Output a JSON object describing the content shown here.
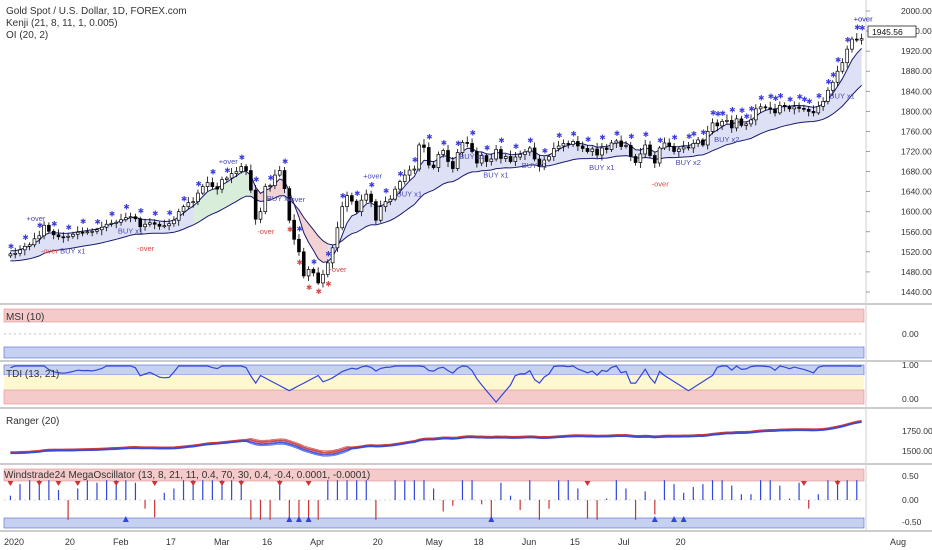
{
  "chart_data": {
    "type": "candlestick",
    "title": "Gold Spot / U.S. Dollar, 1D, FOREX.com",
    "indicators": {
      "main": [
        "Kenji (21, 8, 11, 1, 0.005)",
        "OI (20, 2)"
      ],
      "msi": "MSI (10)",
      "tdi": "TDI (13, 21)",
      "ranger": "Ranger (20)",
      "mega": "Windstrade24 MegaOscillator (13, 8, 21, 11, 0.4, 70, 30, 0.4, -0.4, 0.0001, -0.0001)"
    },
    "x_ticks": [
      "2020",
      "20",
      "Feb",
      "17",
      "Mar",
      "16",
      "Apr",
      "20",
      "May",
      "18",
      "Jun",
      "15",
      "Jul",
      "20",
      "Aug"
    ],
    "y_ticks_price": [
      "2000.00",
      "1960.00",
      "1920.00",
      "1880.00",
      "1840.00",
      "1800.00",
      "1760.00",
      "1720.00",
      "1680.00",
      "1640.00",
      "1600.00",
      "1560.00",
      "1520.00",
      "1480.00",
      "1440.00"
    ],
    "ylim_price": [
      1420,
      2010
    ],
    "last_price": "1945.56",
    "y_ticks_msi": [
      "0.00"
    ],
    "y_ticks_tdi": [
      "1.00",
      "0.00"
    ],
    "y_ticks_ranger": [
      "1750.00",
      "1500.00"
    ],
    "y_ticks_mega": [
      "0.50",
      "0.00",
      "-0.50"
    ],
    "annotations": [
      {
        "text": "BUY x1",
        "date_index": 12
      },
      {
        "text": "BUY x1",
        "date_index": 24
      },
      {
        "text": "BUY x2",
        "date_index": 55
      },
      {
        "text": "BUY x1",
        "date_index": 82
      },
      {
        "text": "BUY x1",
        "date_index": 95
      },
      {
        "text": "BUY x1",
        "date_index": 100
      },
      {
        "text": "BUY x1",
        "date_index": 108
      },
      {
        "text": "BUY x1",
        "date_index": 122
      },
      {
        "text": "BUY x2",
        "date_index": 140
      },
      {
        "text": "BUY x2",
        "date_index": 148
      },
      {
        "text": "BUY x1",
        "date_index": 172
      }
    ],
    "over_labels": [
      {
        "text": "+over",
        "date_index": 5
      },
      {
        "text": "-over",
        "date_index": 8
      },
      {
        "text": "-over",
        "date_index": 28
      },
      {
        "text": "+over",
        "date_index": 45
      },
      {
        "text": "-over",
        "date_index": 53
      },
      {
        "text": "+over",
        "date_index": 59
      },
      {
        "text": "-over",
        "date_index": 68
      },
      {
        "text": "+over",
        "date_index": 75
      },
      {
        "text": "-over",
        "date_index": 135
      },
      {
        "text": "+over",
        "date_index": 177
      },
      {
        "text": "+over",
        "date_index": 182
      }
    ],
    "colors": {
      "up": "#ffffff",
      "down": "#000000",
      "band_upper": "#1a1a6e",
      "band_lower": "#1a1a6e",
      "band_fill": "#d8dcf5",
      "bear_fill": "#f5d0d0",
      "bull_fill": "#d7efd7",
      "marker": "#3b3bdf",
      "buy_text": "#4a4ab8",
      "over_text_pos": "#4a4ab8",
      "over_text_neg": "#d84848",
      "pane_red": "#f4caca",
      "pane_blue": "#c6d1f2",
      "pane_yellow": "#fdf8cf",
      "line_blue": "#3246d8",
      "line_red": "#cc3333"
    },
    "series": [
      {
        "name": "close",
        "values": [
          1516,
          1517,
          1524,
          1531,
          1534,
          1546,
          1552,
          1573,
          1561,
          1554,
          1550,
          1549,
          1551,
          1555,
          1559,
          1558,
          1560,
          1561,
          1564,
          1569,
          1575,
          1577,
          1579,
          1584,
          1588,
          1590,
          1586,
          1570,
          1575,
          1578,
          1575,
          1571,
          1572,
          1576,
          1583,
          1600,
          1610,
          1618,
          1620,
          1637,
          1650,
          1658,
          1650,
          1645,
          1664,
          1667,
          1676,
          1680,
          1690,
          1682,
          1643,
          1585,
          1600,
          1650,
          1652,
          1673,
          1682,
          1646,
          1583,
          1545,
          1520,
          1472,
          1485,
          1478,
          1458,
          1475,
          1498,
          1528,
          1568,
          1610,
          1632,
          1621,
          1600,
          1623,
          1635,
          1620,
          1583,
          1610,
          1620,
          1625,
          1645,
          1660,
          1673,
          1683,
          1685,
          1733,
          1728,
          1693,
          1688,
          1714,
          1722,
          1700,
          1686,
          1718,
          1738,
          1736,
          1720,
          1697,
          1712,
          1700,
          1705,
          1724,
          1706,
          1710,
          1700,
          1709,
          1714,
          1719,
          1727,
          1705,
          1690,
          1703,
          1710,
          1726,
          1731,
          1736,
          1734,
          1740,
          1731,
          1726,
          1720,
          1725,
          1713,
          1727,
          1724,
          1737,
          1741,
          1730,
          1732,
          1710,
          1698,
          1715,
          1733,
          1712,
          1697,
          1727,
          1737,
          1730,
          1720,
          1725,
          1729,
          1727,
          1736,
          1743,
          1733,
          1760,
          1777,
          1771,
          1780,
          1782,
          1767,
          1785,
          1772,
          1775,
          1783,
          1805,
          1809,
          1807,
          1805,
          1797,
          1812,
          1809,
          1805,
          1809,
          1806,
          1804,
          1800,
          1797,
          1810,
          1820,
          1842,
          1858,
          1880,
          1897,
          1924,
          1944,
          1942,
          1945
        ]
      }
    ]
  }
}
